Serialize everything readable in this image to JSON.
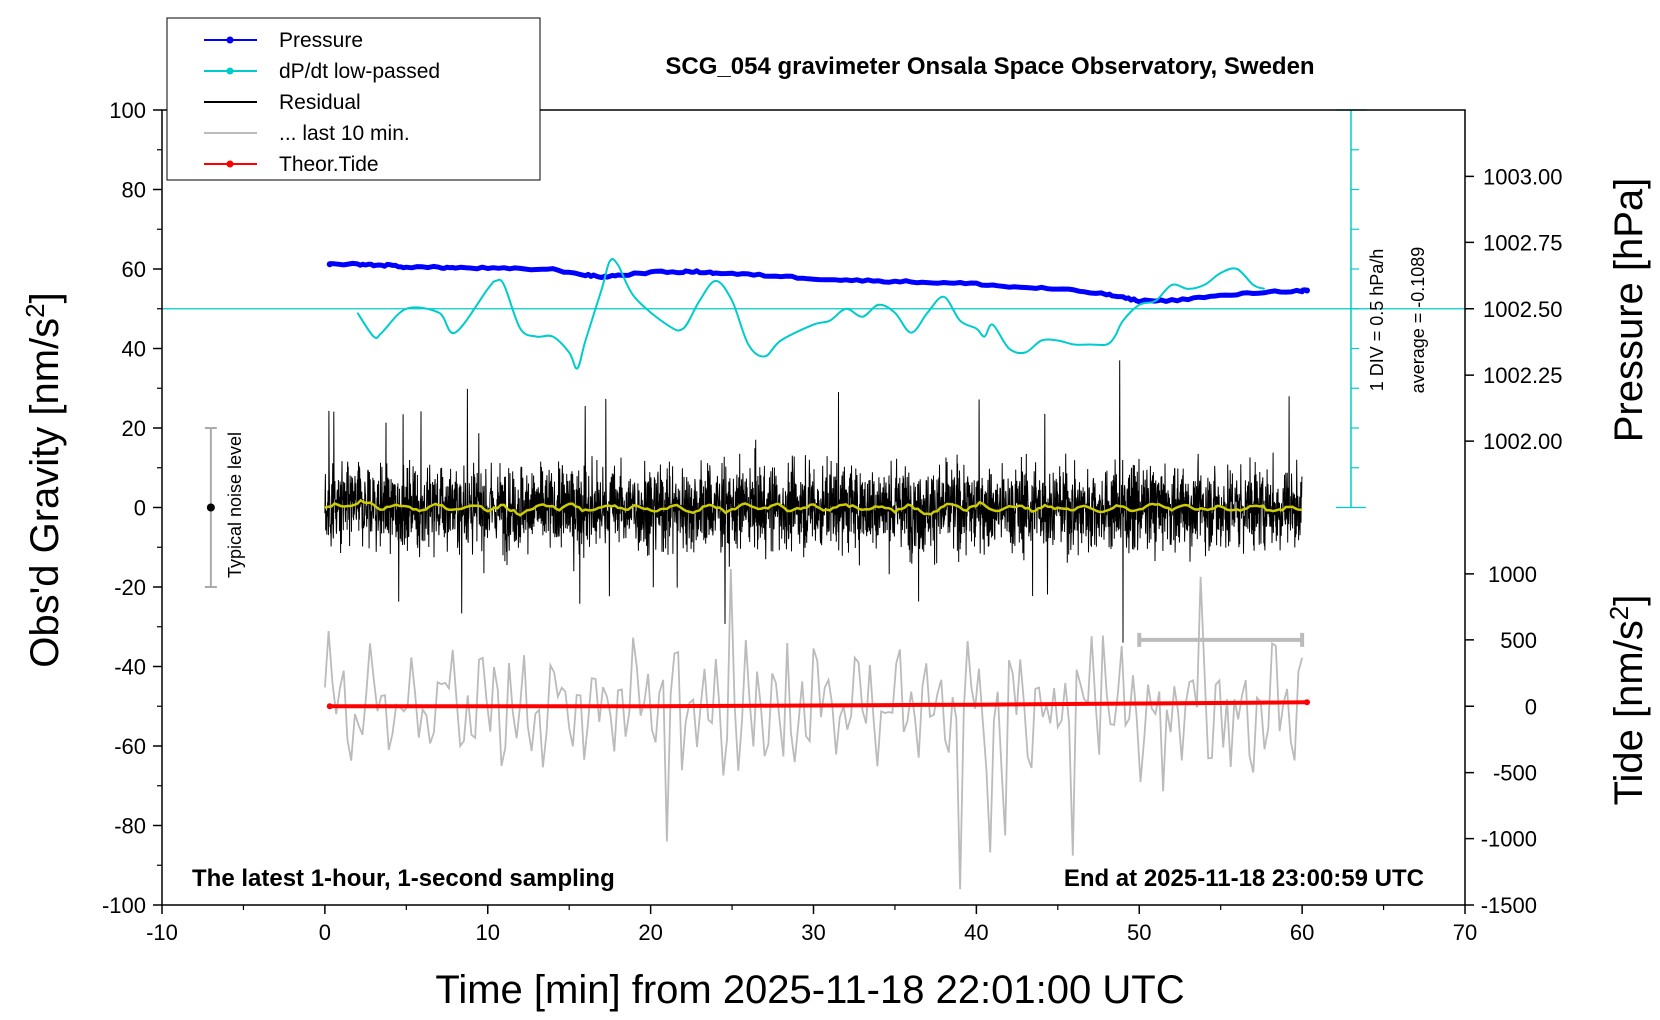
{
  "chart_data": {
    "type": "line",
    "title": "SCG_054 gravimeter Onsala Space Observatory, Sweden",
    "xlabel": "Time [min] from 2025-11-18 22:01:00 UTC",
    "ylabel_left": "Obs'd Gravity [nm/s",
    "ylabel_left_sup": "2",
    "ylabel_left_end": "]",
    "ylabel_right_pressure": "Pressure [hPa]",
    "ylabel_right_tide": "Tide [nm/s",
    "ylabel_right_tide_sup": "2",
    "ylabel_right_tide_end": "]",
    "xlim": [
      -10,
      70
    ],
    "ylim": [
      -100,
      100
    ],
    "x_ticks": [
      "-10",
      "0",
      "10",
      "20",
      "30",
      "40",
      "50",
      "60",
      "70"
    ],
    "y_ticks": [
      "100",
      "80",
      "60",
      "40",
      "20",
      "0",
      "-20",
      "-40",
      "-60",
      "-80",
      "-100"
    ],
    "pressure_axis": {
      "ticks": [
        {
          "label": "1003.00",
          "left_value": 83.3
        },
        {
          "label": "1002.75",
          "left_value": 66.7
        },
        {
          "label": "1002.50",
          "left_value": 50.0
        },
        {
          "label": "1002.25",
          "left_value": 33.3
        },
        {
          "label": "1002.00",
          "left_value": 16.7
        }
      ]
    },
    "tide_axis": {
      "ticks": [
        {
          "label": "1000",
          "left_value": -16.7
        },
        {
          "label": "500",
          "left_value": -33.3
        },
        {
          "label": "0",
          "left_value": -50.0
        },
        {
          "label": "-500",
          "left_value": -66.7
        },
        {
          "label": "-1000",
          "left_value": -83.3
        },
        {
          "label": "-1500",
          "left_value": -100.0
        }
      ]
    },
    "legend": {
      "placement": "top-left",
      "entries": [
        {
          "label": "Pressure",
          "color": "#0000ff",
          "marker": true
        },
        {
          "label": "dP/dt low-passed",
          "color": "#00cccc",
          "marker": true
        },
        {
          "label": "Residual",
          "color": "#000000",
          "marker": false
        },
        {
          "label": "... last 10 min.",
          "color": "#bbbbbb",
          "marker": false
        },
        {
          "label": "Theor.Tide",
          "color": "#ff0000",
          "marker": true
        }
      ]
    },
    "annotations": {
      "noise": "Typical noise level",
      "div": "1 DIV = 0.5 hPa/h",
      "average": "average = -0.1089",
      "bottom_left": "The latest 1-hour, 1-second sampling",
      "bottom_right": "End at 2025-11-18 23:00:59 UTC"
    },
    "noise_level": {
      "x": -7,
      "y_low": -20,
      "y_high": 20
    },
    "series": [
      {
        "name": "Pressure",
        "color": "#0000ff",
        "x": [
          0.3,
          2,
          3,
          4,
          5,
          7,
          8,
          10,
          12,
          14,
          16,
          17,
          18,
          20,
          22,
          23,
          24,
          26,
          28,
          30,
          32,
          34,
          36,
          38,
          40,
          42,
          44,
          46,
          48,
          49,
          50,
          52,
          54,
          56,
          58,
          60,
          60.3
        ],
        "values": [
          61.2,
          61.2,
          61.0,
          60.9,
          60.5,
          60.4,
          60.3,
          60.2,
          60.0,
          59.9,
          58.5,
          58.0,
          58.4,
          59.2,
          59.3,
          59.3,
          59.0,
          58.6,
          58.2,
          57.6,
          57.2,
          57.0,
          56.8,
          56.5,
          56.3,
          55.5,
          55.2,
          54.6,
          53.6,
          52.8,
          52.0,
          52.1,
          52.9,
          53.6,
          54.3,
          54.5,
          54.6
        ]
      },
      {
        "name": "dP/dt low-passed",
        "color": "#00cccc",
        "x": [
          2,
          3,
          3.5,
          5,
          7,
          8,
          10,
          10.5,
          11,
          12,
          13,
          14,
          15,
          15.5,
          16,
          17,
          17.5,
          18,
          19,
          21,
          22,
          23,
          24,
          25,
          26,
          27,
          28,
          30,
          31,
          32,
          33,
          34,
          35,
          36,
          37,
          38,
          39,
          40,
          40.5,
          41,
          42,
          43,
          44,
          45,
          46,
          47,
          48,
          48.5,
          49,
          50,
          51,
          52,
          53,
          54,
          55,
          56,
          57,
          57.7
        ],
        "values": [
          49,
          43,
          44,
          50,
          49,
          44,
          55,
          57,
          56,
          45,
          43,
          43,
          39,
          35,
          42,
          55,
          62,
          61,
          53,
          46,
          45,
          52,
          57,
          52,
          41,
          38,
          42,
          46,
          47,
          50,
          48,
          51,
          49,
          44,
          49,
          53,
          47,
          45,
          43,
          46,
          40,
          39,
          42,
          42,
          41,
          41,
          41,
          43,
          47,
          51,
          52,
          56,
          55,
          56,
          59,
          60,
          56,
          55
        ]
      },
      {
        "name": "Theor.Tide",
        "color": "#ff0000",
        "x": [
          0.3,
          20,
          40,
          60.3
        ],
        "values": [
          -50.0,
          -50.0,
          -49.6,
          -49.0
        ]
      }
    ],
    "reference_line": {
      "y": 50,
      "color": "#00cccc"
    },
    "residual": {
      "x_start": 0,
      "x_end": 60,
      "color": "#000000",
      "smooth_color": "#cccc00",
      "typical_amplitude": 10,
      "min": -34,
      "max": 37
    },
    "last_10_min": {
      "x_start": 50,
      "x_end": 60,
      "color": "#bbbbbb",
      "bar_y": -33.3
    },
    "dpdt_scale": {
      "x": 63,
      "y_top": 100,
      "y_bottom": 0,
      "color": "#00cccc",
      "divisions": 10
    }
  }
}
